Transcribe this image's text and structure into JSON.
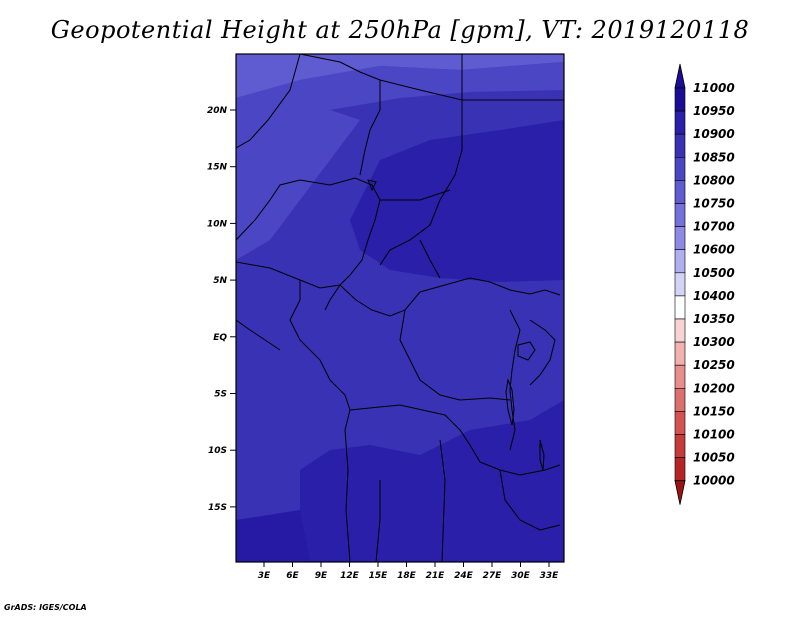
{
  "title": "Geopotential Height at 250hPa [gpm], VT: 2019120118",
  "footer": "GrADS: IGES/COLA",
  "map": {
    "lat_labels": [
      "20N",
      "15N",
      "10N",
      "5N",
      "EQ",
      "5S",
      "10S",
      "15S"
    ],
    "lon_labels": [
      "3E",
      "6E",
      "9E",
      "12E",
      "15E",
      "18E",
      "21E",
      "24E",
      "27E",
      "30E",
      "33E"
    ]
  },
  "colorbar": {
    "levels": [
      "11000",
      "10950",
      "10900",
      "10850",
      "10800",
      "10750",
      "10700",
      "10600",
      "10500",
      "10400",
      "10350",
      "10300",
      "10250",
      "10200",
      "10150",
      "10100",
      "10050",
      "10000"
    ],
    "colors": [
      "#1b0d96",
      "#2a1fa8",
      "#3a32b5",
      "#4b46c3",
      "#5f5bd0",
      "#7470dc",
      "#8d8ae6",
      "#b0aff0",
      "#d3d3f7",
      "#ffffff",
      "#f8d3d3",
      "#f2b0b0",
      "#e88d8d",
      "#de6f6f",
      "#d45252",
      "#c73b3b",
      "#b52525",
      "#9e1212"
    ]
  },
  "field": {
    "colors": {
      "c10850": "#4b46c3",
      "c10900": "#3a32b5",
      "c10950": "#2a1fa8",
      "c11000": "#1b0d96",
      "c10800": "#5f5bd0"
    }
  }
}
